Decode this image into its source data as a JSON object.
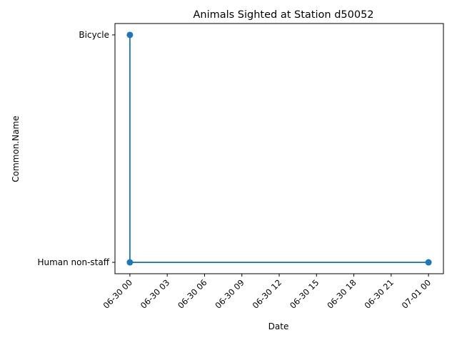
{
  "chart_data": {
    "type": "line",
    "title": "Animals Sighted at Station d50052",
    "xlabel": "Date",
    "ylabel": "Common.Name",
    "x_ticks": [
      "06-30 00",
      "06-30 03",
      "06-30 06",
      "06-30 09",
      "06-30 12",
      "06-30 15",
      "06-30 18",
      "06-30 21",
      "07-01 00"
    ],
    "x_range": [
      "06-29 22:48",
      "07-01 01:12"
    ],
    "categories_y": [
      "Human non-staff",
      "Bicycle"
    ],
    "series": [
      {
        "color": "#1f77b4",
        "marker": "circle",
        "points": [
          {
            "x": "06-30 00:00",
            "y": "Bicycle"
          },
          {
            "x": "06-30 00:00",
            "y": "Human non-staff"
          },
          {
            "x": "07-01 00:00",
            "y": "Human non-staff"
          }
        ]
      }
    ],
    "grid": false,
    "legend": "none"
  }
}
